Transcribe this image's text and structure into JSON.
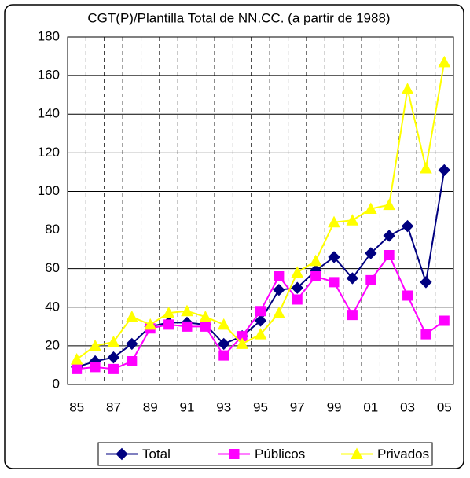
{
  "chart_data": {
    "type": "line",
    "title": "CGT(P)/Plantilla Total de NN.CC. (a partir de 1988)",
    "categories": [
      "85",
      null,
      "87",
      null,
      "89",
      null,
      "91",
      null,
      "93",
      null,
      "95",
      null,
      "97",
      null,
      "99",
      null,
      "01",
      null,
      "03",
      null,
      "05"
    ],
    "series": [
      {
        "name": "Total",
        "color": "#000080",
        "marker": "diamond",
        "values": [
          9,
          12,
          14,
          21,
          30,
          32,
          32,
          31,
          21,
          25,
          33,
          49,
          50,
          59,
          66,
          55,
          68,
          77,
          82,
          53,
          111
        ]
      },
      {
        "name": "Públicos",
        "color": "#ff00ff",
        "marker": "square",
        "values": [
          8,
          9,
          8,
          12,
          29,
          31,
          30,
          30,
          15,
          25,
          38,
          56,
          44,
          56,
          53,
          36,
          54,
          67,
          46,
          26,
          33
        ]
      },
      {
        "name": "Privados",
        "color": "#ffff00",
        "marker": "triangle",
        "values": [
          13,
          20,
          22,
          35,
          31,
          37,
          38,
          35,
          31,
          21,
          26,
          37,
          58,
          64,
          84,
          85,
          91,
          93,
          153,
          112,
          167
        ]
      }
    ],
    "ylim": [
      0,
      180
    ],
    "yticks": [
      0,
      20,
      40,
      60,
      80,
      100,
      120,
      140,
      160,
      180
    ],
    "grid": true,
    "legend": "bottom"
  }
}
